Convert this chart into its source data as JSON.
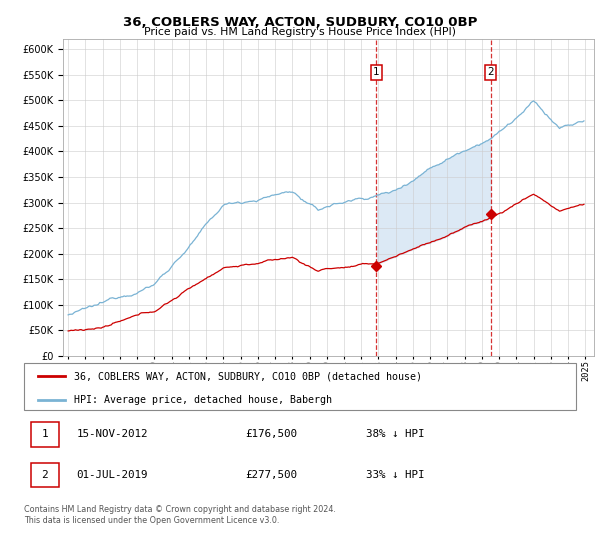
{
  "title": "36, COBLERS WAY, ACTON, SUDBURY, CO10 0BP",
  "subtitle": "Price paid vs. HM Land Registry's House Price Index (HPI)",
  "ylim": [
    0,
    620000
  ],
  "yticks": [
    0,
    50000,
    100000,
    150000,
    200000,
    250000,
    300000,
    350000,
    400000,
    450000,
    500000,
    550000,
    600000
  ],
  "sale1_price": 176500,
  "sale2_price": 277500,
  "sale1_year": 2012.88,
  "sale2_year": 2019.5,
  "legend_property": "36, COBLERS WAY, ACTON, SUDBURY, CO10 0BP (detached house)",
  "legend_hpi": "HPI: Average price, detached house, Babergh",
  "footer": "Contains HM Land Registry data © Crown copyright and database right 2024.\nThis data is licensed under the Open Government Licence v3.0.",
  "table_rows": [
    {
      "num": "1",
      "date": "15-NOV-2012",
      "price": "£176,500",
      "change": "38% ↓ HPI"
    },
    {
      "num": "2",
      "date": "01-JUL-2019",
      "price": "£277,500",
      "change": "33% ↓ HPI"
    }
  ],
  "hpi_color": "#7ab3d4",
  "property_color": "#cc0000",
  "shaded_color": "#dce9f5",
  "grid_color": "#cccccc",
  "background_color": "#ffffff",
  "annotation_box_color": "#cc0000"
}
